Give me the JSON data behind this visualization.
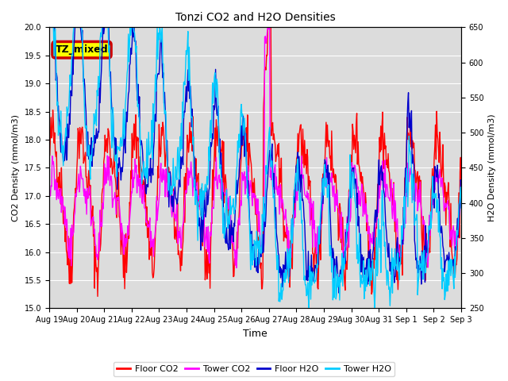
{
  "title": "Tonzi CO2 and H2O Densities",
  "xlabel": "Time",
  "ylabel_left": "CO2 Density (mmol/m3)",
  "ylabel_right": "H2O Density (mmol/m3)",
  "co2_ylim": [
    15.0,
    20.0
  ],
  "h2o_ylim": [
    250,
    650
  ],
  "co2_yticks": [
    15.0,
    15.5,
    16.0,
    16.5,
    17.0,
    17.5,
    18.0,
    18.5,
    19.0,
    19.5,
    20.0
  ],
  "h2o_yticks": [
    250,
    300,
    350,
    400,
    450,
    500,
    550,
    600,
    650
  ],
  "xtick_labels": [
    "Aug 19",
    "Aug 20",
    "Aug 21",
    "Aug 22",
    "Aug 23",
    "Aug 24",
    "Aug 25",
    "Aug 26",
    "Aug 27",
    "Aug 28",
    "Aug 29",
    "Aug 30",
    "Aug 31",
    "Sep 1",
    "Sep 2",
    "Sep 3"
  ],
  "floor_co2_color": "#FF0000",
  "tower_co2_color": "#FF00FF",
  "floor_h2o_color": "#0000CC",
  "tower_h2o_color": "#00CCFF",
  "label_text": "TZ_mixed",
  "label_bg": "#FFFF00",
  "label_border": "#CC0000",
  "background_color": "#DCDCDC",
  "line_width": 1.0,
  "n_points": 672,
  "seed": 42
}
